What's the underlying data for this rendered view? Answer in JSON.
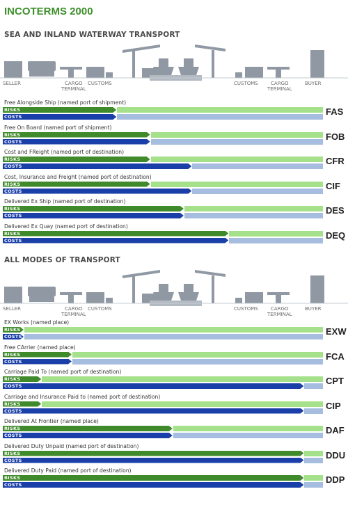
{
  "title": "INCOTERMS 2000",
  "colors": {
    "seller_risk": "#3f8a2a",
    "buyer_risk": "#a5e08a",
    "seller_cost": "#1a3fa8",
    "buyer_cost": "#a6bde0",
    "scene_grey": "#8f98a3"
  },
  "sections": [
    {
      "id": "sea",
      "title": "SEA AND INLAND WATERWAY TRANSPORT",
      "stage_labels": {
        "seller": "SELLER",
        "cargo_terminal_left": "CARGO\nTERMINAL",
        "customs_left": "CUSTOMS",
        "customs_right": "CUSTOMS",
        "cargo_terminal_right": "CARGO\nTERMINAL",
        "buyer": "BUYER"
      },
      "terms": [
        {
          "code": "FAS",
          "description": "Free Alongside Ship (named port of shipment)",
          "risks_label": "RISKS",
          "costs_label": "COSTS",
          "risk_transfer": 0.355,
          "cost_transfer": 0.355
        },
        {
          "code": "FOB",
          "description": "Free On Board (named port of shipment)",
          "risks_label": "RISKS",
          "costs_label": "COSTS",
          "risk_transfer": 0.46,
          "cost_transfer": 0.46
        },
        {
          "code": "CFR",
          "description": "Cost and FReight (named port of destination)",
          "risks_label": "RISKS",
          "costs_label": "COSTS",
          "risk_transfer": 0.46,
          "cost_transfer": 0.59
        },
        {
          "code": "CIF",
          "description": "Cost, Insurance and Freight (named port of destination)",
          "risks_label": "RISKS",
          "costs_label": "COSTS",
          "risk_transfer": 0.46,
          "cost_transfer": 0.59
        },
        {
          "code": "DES",
          "description": "Delivered Ex Ship (named port of destination)",
          "risks_label": "RISKS",
          "costs_label": "COSTS",
          "risk_transfer": 0.565,
          "cost_transfer": 0.565
        },
        {
          "code": "DEQ",
          "description": "Delivered Ex Quay (named port of destination)",
          "risks_label": "RISKS",
          "costs_label": "COSTS",
          "risk_transfer": 0.705,
          "cost_transfer": 0.705
        }
      ]
    },
    {
      "id": "all",
      "title": "ALL MODES OF TRANSPORT",
      "stage_labels": {
        "seller": "SELLER",
        "cargo_terminal_left": "CARGO\nTERMINAL",
        "customs_left": "CUSTOMS",
        "customs_right": "CUSTOMS",
        "cargo_terminal_right": "CARGO\nTERMINAL",
        "buyer": "BUYER"
      },
      "terms": [
        {
          "code": "EXW",
          "description": "EX Works (named place)",
          "risks_label": "RISKS",
          "costs_label": "COSTS",
          "risk_transfer": 0.065,
          "cost_transfer": 0.065
        },
        {
          "code": "FCA",
          "description": "Free CArrier (named place)",
          "risks_label": "RISKS",
          "costs_label": "COSTS",
          "risk_transfer": 0.215,
          "cost_transfer": 0.215
        },
        {
          "code": "CPT",
          "description": "Carriage Paid To (named port of destination)",
          "risks_label": "RISKS",
          "costs_label": "COSTS",
          "risk_transfer": 0.12,
          "cost_transfer": 0.94
        },
        {
          "code": "CIP",
          "description": "Carriage and Insurance Paid to (named port of destination)",
          "risks_label": "RISKS",
          "costs_label": "COSTS",
          "risk_transfer": 0.12,
          "cost_transfer": 0.94
        },
        {
          "code": "DAF",
          "description": "Delivered At Frontier (named place)",
          "risks_label": "RISKS",
          "costs_label": "COSTS",
          "risk_transfer": 0.53,
          "cost_transfer": 0.53
        },
        {
          "code": "DDU",
          "description": "Delivered Duty Unpaid (named port of destination)",
          "risks_label": "RISKS",
          "costs_label": "COSTS",
          "risk_transfer": 0.94,
          "cost_transfer": 0.94
        },
        {
          "code": "DDP",
          "description": "Delivered Duty Paid (named port of destination)",
          "risks_label": "RISKS",
          "costs_label": "COSTS",
          "risk_transfer": 0.94,
          "cost_transfer": 0.94
        }
      ]
    }
  ]
}
